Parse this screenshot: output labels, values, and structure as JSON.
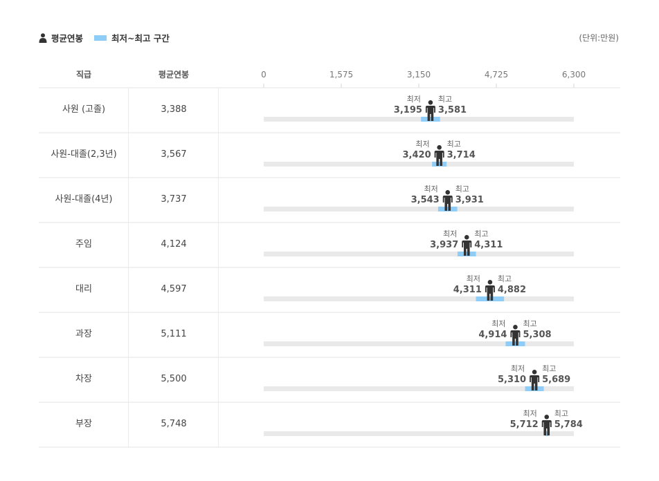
{
  "legend": {
    "avg_label": "평균연봉",
    "range_label": "최저~최고 구간"
  },
  "unit_label": "(단위:만원)",
  "columns": {
    "rank": "직급",
    "avg": "평균연봉"
  },
  "colors": {
    "range": "#8ecdf8",
    "track": "#e9e9e9",
    "person": "#333333"
  },
  "chart_data": {
    "type": "bar",
    "xlim": [
      0,
      6300
    ],
    "ticks": [
      0,
      1575,
      3150,
      4725,
      6300
    ],
    "tick_labels": [
      "0",
      "1,575",
      "3,150",
      "4,725",
      "6,300"
    ],
    "min_label": "최저",
    "max_label": "최고",
    "rows": [
      {
        "rank": "사원 (고졸)",
        "avg": 3388,
        "avg_label": "3,388",
        "min": 3195,
        "min_label": "3,195",
        "max": 3581,
        "max_label": "3,581"
      },
      {
        "rank": "사원-대졸(2,3년)",
        "avg": 3567,
        "avg_label": "3,567",
        "min": 3420,
        "min_label": "3,420",
        "max": 3714,
        "max_label": "3,714"
      },
      {
        "rank": "사원-대졸(4년)",
        "avg": 3737,
        "avg_label": "3,737",
        "min": 3543,
        "min_label": "3,543",
        "max": 3931,
        "max_label": "3,931"
      },
      {
        "rank": "주임",
        "avg": 4124,
        "avg_label": "4,124",
        "min": 3937,
        "min_label": "3,937",
        "max": 4311,
        "max_label": "4,311"
      },
      {
        "rank": "대리",
        "avg": 4597,
        "avg_label": "4,597",
        "min": 4311,
        "min_label": "4,311",
        "max": 4882,
        "max_label": "4,882"
      },
      {
        "rank": "과장",
        "avg": 5111,
        "avg_label": "5,111",
        "min": 4914,
        "min_label": "4,914",
        "max": 5308,
        "max_label": "5,308"
      },
      {
        "rank": "차장",
        "avg": 5500,
        "avg_label": "5,500",
        "min": 5310,
        "min_label": "5,310",
        "max": 5689,
        "max_label": "5,689"
      },
      {
        "rank": "부장",
        "avg": 5748,
        "avg_label": "5,748",
        "min": 5712,
        "min_label": "5,712",
        "max": 5784,
        "max_label": "5,784"
      }
    ]
  }
}
